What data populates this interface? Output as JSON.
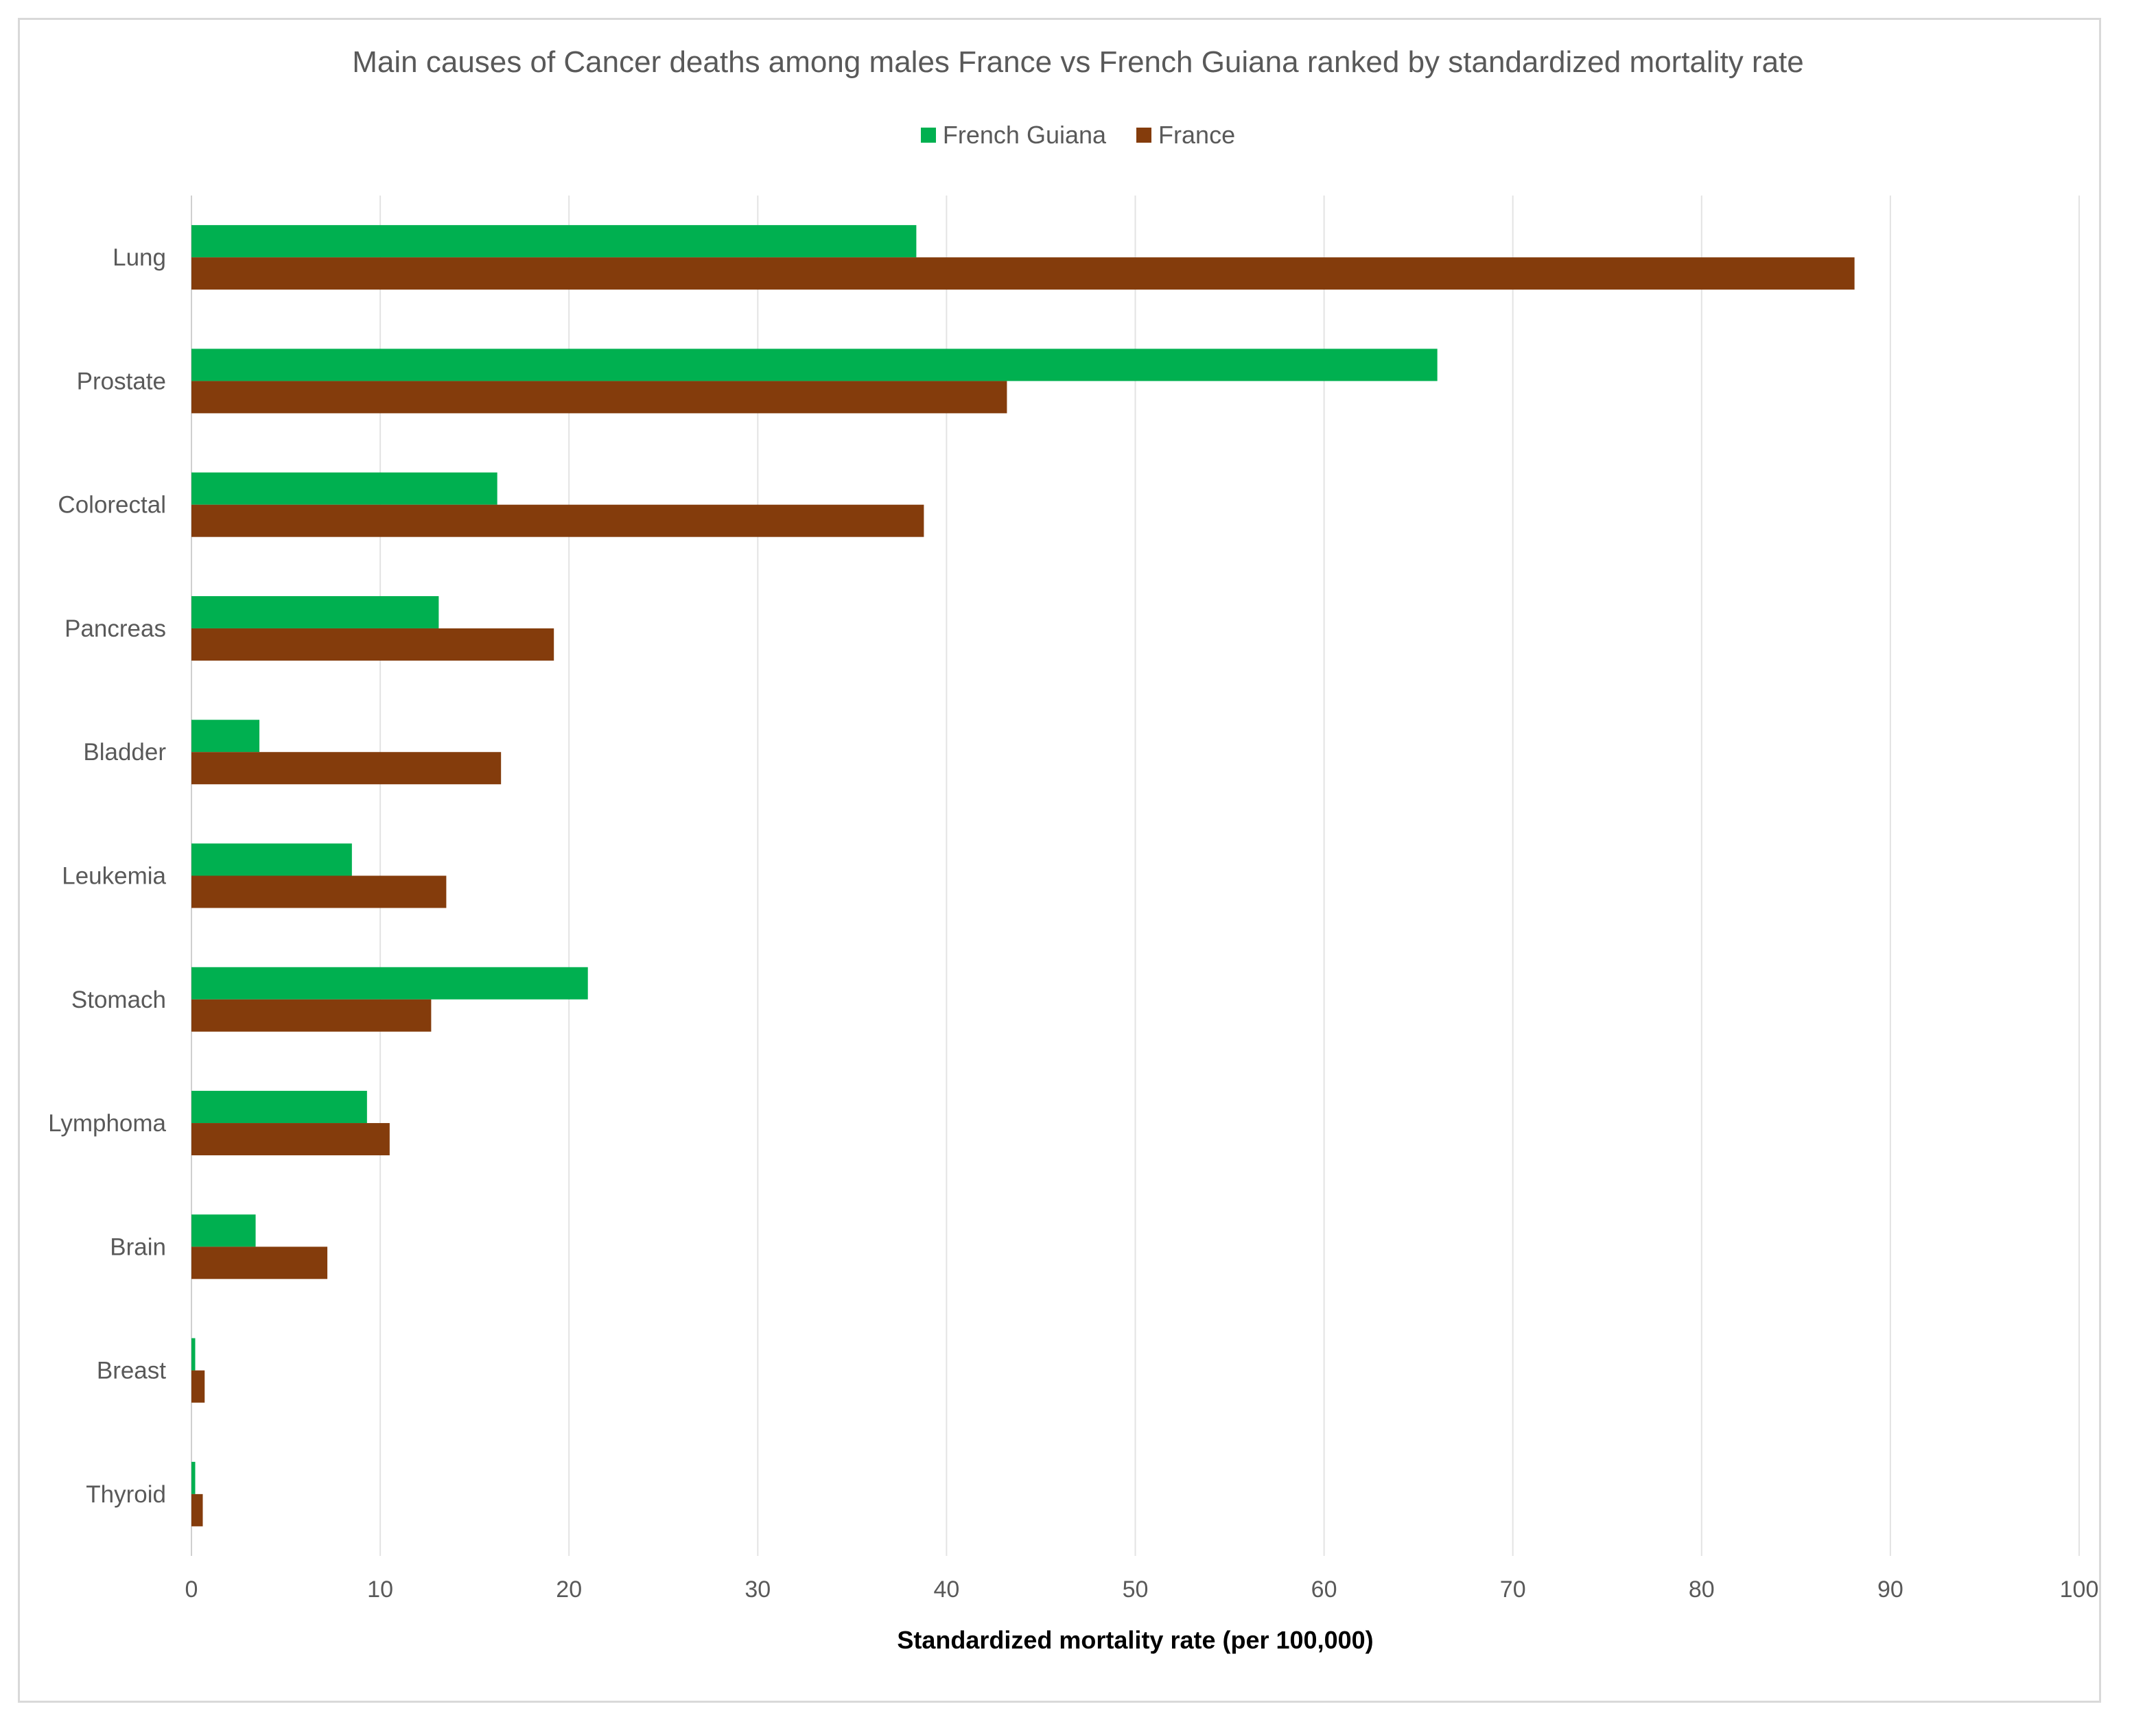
{
  "chart_data": {
    "type": "bar",
    "orientation": "horizontal",
    "title": "Main causes of Cancer deaths among males France vs French Guiana ranked by standardized mortality rate",
    "xlabel": "Standardized  mortality rate (per 100,000)",
    "ylabel": "",
    "xlim": [
      0,
      100
    ],
    "xticks": [
      0,
      10,
      20,
      30,
      40,
      50,
      60,
      70,
      80,
      90,
      100
    ],
    "grid": true,
    "legend_position": "top-center",
    "categories": [
      "Lung",
      "Prostate",
      "Colorectal",
      "Pancreas",
      "Bladder",
      "Leukemia",
      "Stomach",
      "Lymphoma",
      "Brain",
      "Breast",
      "Thyroid"
    ],
    "series": [
      {
        "name": "French Guiana",
        "color": "#00b050",
        "values": [
          38.4,
          66.0,
          16.2,
          13.1,
          3.6,
          8.5,
          21.0,
          9.3,
          3.4,
          0.2,
          0.2
        ]
      },
      {
        "name": "France",
        "color": "#843c0c",
        "values": [
          88.1,
          43.2,
          38.8,
          19.2,
          16.4,
          13.5,
          12.7,
          10.5,
          7.2,
          0.7,
          0.6
        ]
      }
    ]
  }
}
